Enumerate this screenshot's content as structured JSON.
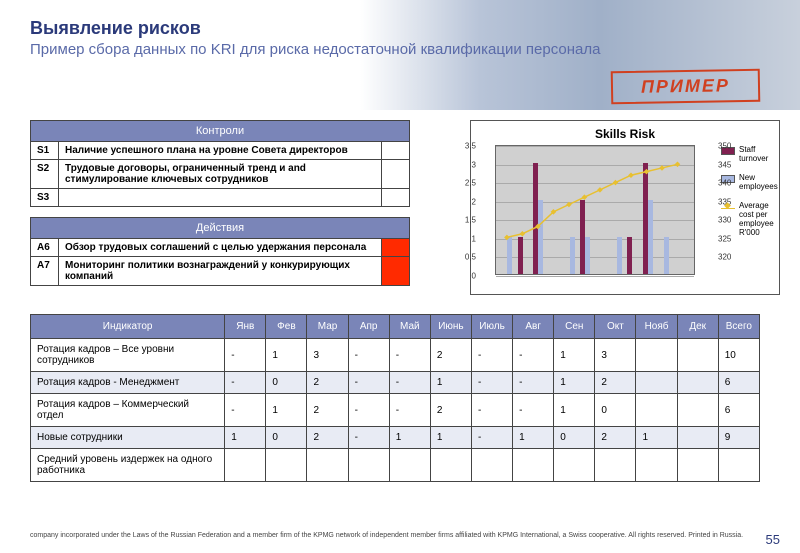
{
  "header": {
    "title": "Выявление рисков",
    "subtitle": "Пример сбора данных по KRI для риска недостаточной квалификации персонала",
    "stamp": "ПРИМЕР"
  },
  "controls": {
    "heading": "Контроли",
    "rows": [
      {
        "code": "S1",
        "text": "Наличие успешного плана на уровне Совета директоров",
        "status": ""
      },
      {
        "code": "S2",
        "text": "Трудовые договоры, ограниченный тренд и and стимулирование ключевых сотрудников",
        "status": ""
      },
      {
        "code": "S3",
        "text": "",
        "status": ""
      }
    ]
  },
  "actions": {
    "heading": "Действия",
    "rows": [
      {
        "code": "A6",
        "text": "Обзор трудовых соглашений с целью удержания персонала",
        "status": "red"
      },
      {
        "code": "A7",
        "text": "Мониторинг политики вознаграждений у конкурирующих компаний",
        "status": "red"
      }
    ]
  },
  "chart": {
    "title": "Skills Risk",
    "type": "bar+line",
    "y_left": {
      "min": 0,
      "max": 3.5,
      "step": 0.5,
      "ticks": [
        "0",
        "0,5",
        "1",
        "1,5",
        "2",
        "2,5",
        "3",
        "3,5"
      ]
    },
    "y_right": {
      "min": 315,
      "max": 350,
      "step": 5,
      "ticks": [
        "320",
        "325",
        "330",
        "335",
        "340",
        "345",
        "350"
      ]
    },
    "series": {
      "staff_turnover": {
        "label": "Staff turnover",
        "color": "#802050",
        "values": [
          0,
          1,
          3,
          0,
          0,
          2,
          0,
          0,
          1,
          3,
          0,
          0
        ]
      },
      "new_employees": {
        "label": "New employees",
        "color": "#a8b8e0",
        "values": [
          1,
          0,
          2,
          0,
          1,
          1,
          0,
          1,
          0,
          2,
          1,
          0
        ]
      },
      "avg_cost": {
        "label": "Average cost per employee R'000",
        "color": "#e8c030",
        "values": [
          325,
          326,
          328,
          332,
          334,
          336,
          338,
          340,
          342,
          343,
          344,
          345
        ]
      }
    },
    "n_points": 12,
    "background": "#d0d0d0",
    "grid_color": "#aaaaaa",
    "title_fontsize": 12
  },
  "indicator_table": {
    "columns": [
      "Индикатор",
      "Янв",
      "Фев",
      "Мар",
      "Апр",
      "Май",
      "Июнь",
      "Июль",
      "Авг",
      "Сен",
      "Окт",
      "Нояб",
      "Дек",
      "Всего"
    ],
    "col_key_note": "Индикатор column wider (~170px), rest ~36px",
    "rows": [
      {
        "label": "Ротация кадров – Все уровни сотрудников",
        "cells": [
          "-",
          "1",
          "3",
          "-",
          "-",
          "2",
          "-",
          "-",
          "1",
          "3",
          "",
          "",
          "10"
        ],
        "alt": false
      },
      {
        "label": "Ротация кадров - Менеджмент",
        "cells": [
          "-",
          "0",
          "2",
          "-",
          "-",
          "1",
          "-",
          "-",
          "1",
          "2",
          "",
          "",
          "6"
        ],
        "alt": true
      },
      {
        "label": "Ротация кадров – Коммерческий отдел",
        "cells": [
          "-",
          "1",
          "2",
          "-",
          "-",
          "2",
          "-",
          "-",
          "1",
          "0",
          "",
          "",
          "6"
        ],
        "alt": false
      },
      {
        "label": "Новые сотрудники",
        "cells": [
          "1",
          "0",
          "2",
          "-",
          "1",
          "1",
          "-",
          "1",
          "0",
          "2",
          "1",
          "",
          "9"
        ],
        "alt": true
      },
      {
        "label": "Средний уровень издержек на одного работника",
        "cells": [
          "",
          "",
          "",
          "",
          "",
          "",
          "",
          "",
          "",
          "",
          "",
          "",
          ""
        ],
        "alt": false
      }
    ]
  },
  "footer": {
    "copyright": "company incorporated under the Laws of the Russian Federation and a member firm of the KPMG network of independent member firms affiliated with KPMG International, a Swiss cooperative. All rights reserved. Printed in Russia.",
    "page": "55"
  }
}
